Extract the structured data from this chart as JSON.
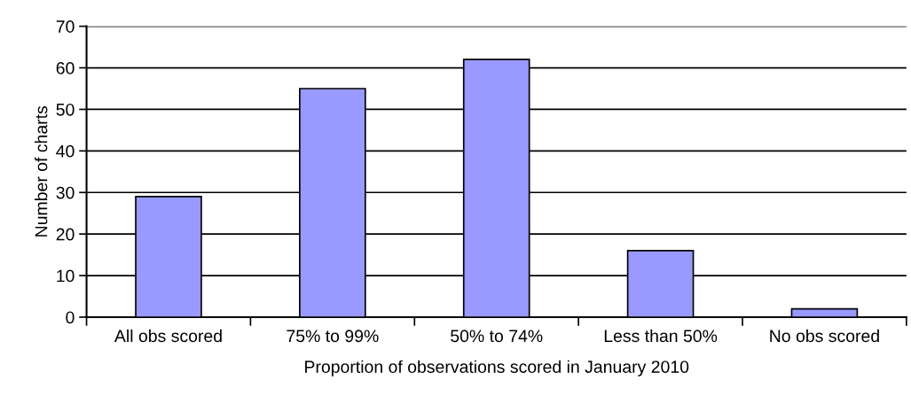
{
  "chart_data": {
    "type": "bar",
    "xlabel": "Proportion of observations scored in January 2010",
    "ylabel": "Number of charts",
    "categories": [
      "All obs scored",
      "75% to 99%",
      "50% to 74%",
      "Less than 50%",
      "No obs scored"
    ],
    "values": [
      29,
      55,
      62,
      16,
      2
    ],
    "color": "#9999ff",
    "ylim": [
      0,
      70
    ],
    "yticks": [
      0,
      10,
      20,
      30,
      40,
      50,
      60,
      70
    ],
    "grid": "y",
    "legend": false
  }
}
